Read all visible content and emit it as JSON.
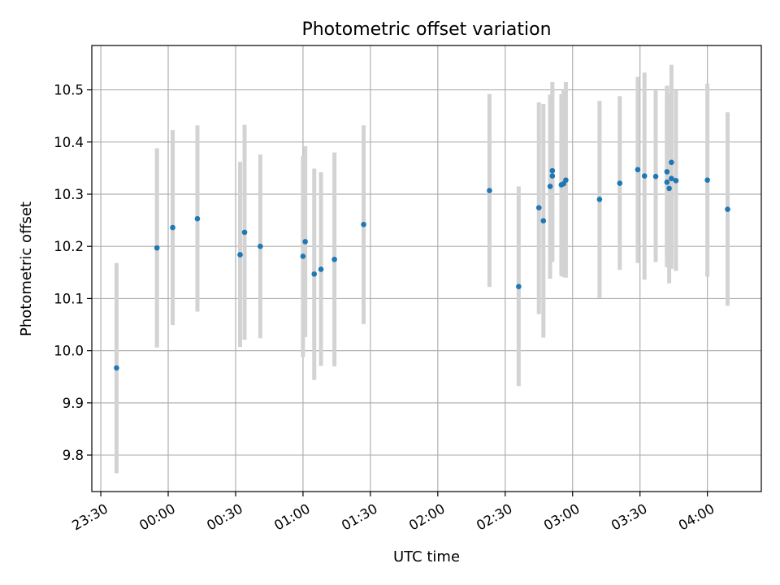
{
  "chart_data": {
    "type": "scatter",
    "title": "Photometric offset variation",
    "xlabel": "UTC time",
    "ylabel": "Photometric offset",
    "xlim": [
      "23:26",
      "04:24"
    ],
    "ylim": [
      9.73,
      10.585
    ],
    "x_ticks": [
      "23:30",
      "00:00",
      "00:30",
      "01:00",
      "01:30",
      "02:00",
      "02:30",
      "03:00",
      "03:30",
      "04:00"
    ],
    "y_ticks": [
      9.8,
      9.9,
      10.0,
      10.1,
      10.2,
      10.3,
      10.4,
      10.5
    ],
    "y_tick_labels": [
      "9.8",
      "9.9",
      "10.0",
      "10.1",
      "10.2",
      "10.3",
      "10.4",
      "10.5"
    ],
    "grid": true,
    "colors": {
      "point": "#1f77b4",
      "errorbar": "#d3d3d3",
      "grid": "#b0b0b0"
    },
    "points": [
      {
        "time": "23:37",
        "y": 9.967,
        "ylow": 9.765,
        "yhigh": 10.168
      },
      {
        "time": "23:55",
        "y": 10.197,
        "ylow": 10.006,
        "yhigh": 10.388
      },
      {
        "time": "00:02",
        "y": 10.236,
        "ylow": 10.049,
        "yhigh": 10.423
      },
      {
        "time": "00:13",
        "y": 10.253,
        "ylow": 10.075,
        "yhigh": 10.432
      },
      {
        "time": "00:32",
        "y": 10.184,
        "ylow": 10.007,
        "yhigh": 10.362
      },
      {
        "time": "00:34",
        "y": 10.227,
        "ylow": 10.021,
        "yhigh": 10.433
      },
      {
        "time": "00:41",
        "y": 10.2,
        "ylow": 10.024,
        "yhigh": 10.376
      },
      {
        "time": "01:00",
        "y": 10.181,
        "ylow": 9.988,
        "yhigh": 10.374
      },
      {
        "time": "01:01",
        "y": 10.209,
        "ylow": 10.026,
        "yhigh": 10.392
      },
      {
        "time": "01:05",
        "y": 10.147,
        "ylow": 9.944,
        "yhigh": 10.349
      },
      {
        "time": "01:08",
        "y": 10.156,
        "ylow": 9.971,
        "yhigh": 10.342
      },
      {
        "time": "01:14",
        "y": 10.175,
        "ylow": 9.97,
        "yhigh": 10.38
      },
      {
        "time": "01:27",
        "y": 10.242,
        "ylow": 10.051,
        "yhigh": 10.432
      },
      {
        "time": "02:23",
        "y": 10.307,
        "ylow": 10.122,
        "yhigh": 10.492
      },
      {
        "time": "02:36",
        "y": 10.123,
        "ylow": 9.932,
        "yhigh": 10.315
      },
      {
        "time": "02:45",
        "y": 10.274,
        "ylow": 10.07,
        "yhigh": 10.476
      },
      {
        "time": "02:47",
        "y": 10.249,
        "ylow": 10.025,
        "yhigh": 10.473
      },
      {
        "time": "02:50",
        "y": 10.315,
        "ylow": 10.138,
        "yhigh": 10.491
      },
      {
        "time": "02:51",
        "y": 10.335,
        "ylow": 10.17,
        "yhigh": 10.5
      },
      {
        "time": "02:51",
        "y": 10.345,
        "ylow": 10.173,
        "yhigh": 10.515
      },
      {
        "time": "02:55",
        "y": 10.318,
        "ylow": 10.143,
        "yhigh": 10.492
      },
      {
        "time": "02:56",
        "y": 10.32,
        "ylow": 10.141,
        "yhigh": 10.5
      },
      {
        "time": "02:57",
        "y": 10.327,
        "ylow": 10.14,
        "yhigh": 10.515
      },
      {
        "time": "03:12",
        "y": 10.29,
        "ylow": 10.101,
        "yhigh": 10.479
      },
      {
        "time": "03:21",
        "y": 10.321,
        "ylow": 10.155,
        "yhigh": 10.488
      },
      {
        "time": "03:29",
        "y": 10.347,
        "ylow": 10.168,
        "yhigh": 10.525
      },
      {
        "time": "03:32",
        "y": 10.335,
        "ylow": 10.136,
        "yhigh": 10.533
      },
      {
        "time": "03:37",
        "y": 10.334,
        "ylow": 10.17,
        "yhigh": 10.499
      },
      {
        "time": "03:42",
        "y": 10.343,
        "ylow": 10.178,
        "yhigh": 10.508
      },
      {
        "time": "03:42",
        "y": 10.323,
        "ylow": 10.16,
        "yhigh": 10.486
      },
      {
        "time": "03:43",
        "y": 10.311,
        "ylow": 10.129,
        "yhigh": 10.493
      },
      {
        "time": "03:44",
        "y": 10.33,
        "ylow": 10.157,
        "yhigh": 10.503
      },
      {
        "time": "03:44",
        "y": 10.361,
        "ylow": 10.173,
        "yhigh": 10.548
      },
      {
        "time": "03:46",
        "y": 10.326,
        "ylow": 10.153,
        "yhigh": 10.499
      },
      {
        "time": "04:00",
        "y": 10.327,
        "ylow": 10.142,
        "yhigh": 10.512
      },
      {
        "time": "04:09",
        "y": 10.271,
        "ylow": 10.086,
        "yhigh": 10.457
      }
    ]
  }
}
